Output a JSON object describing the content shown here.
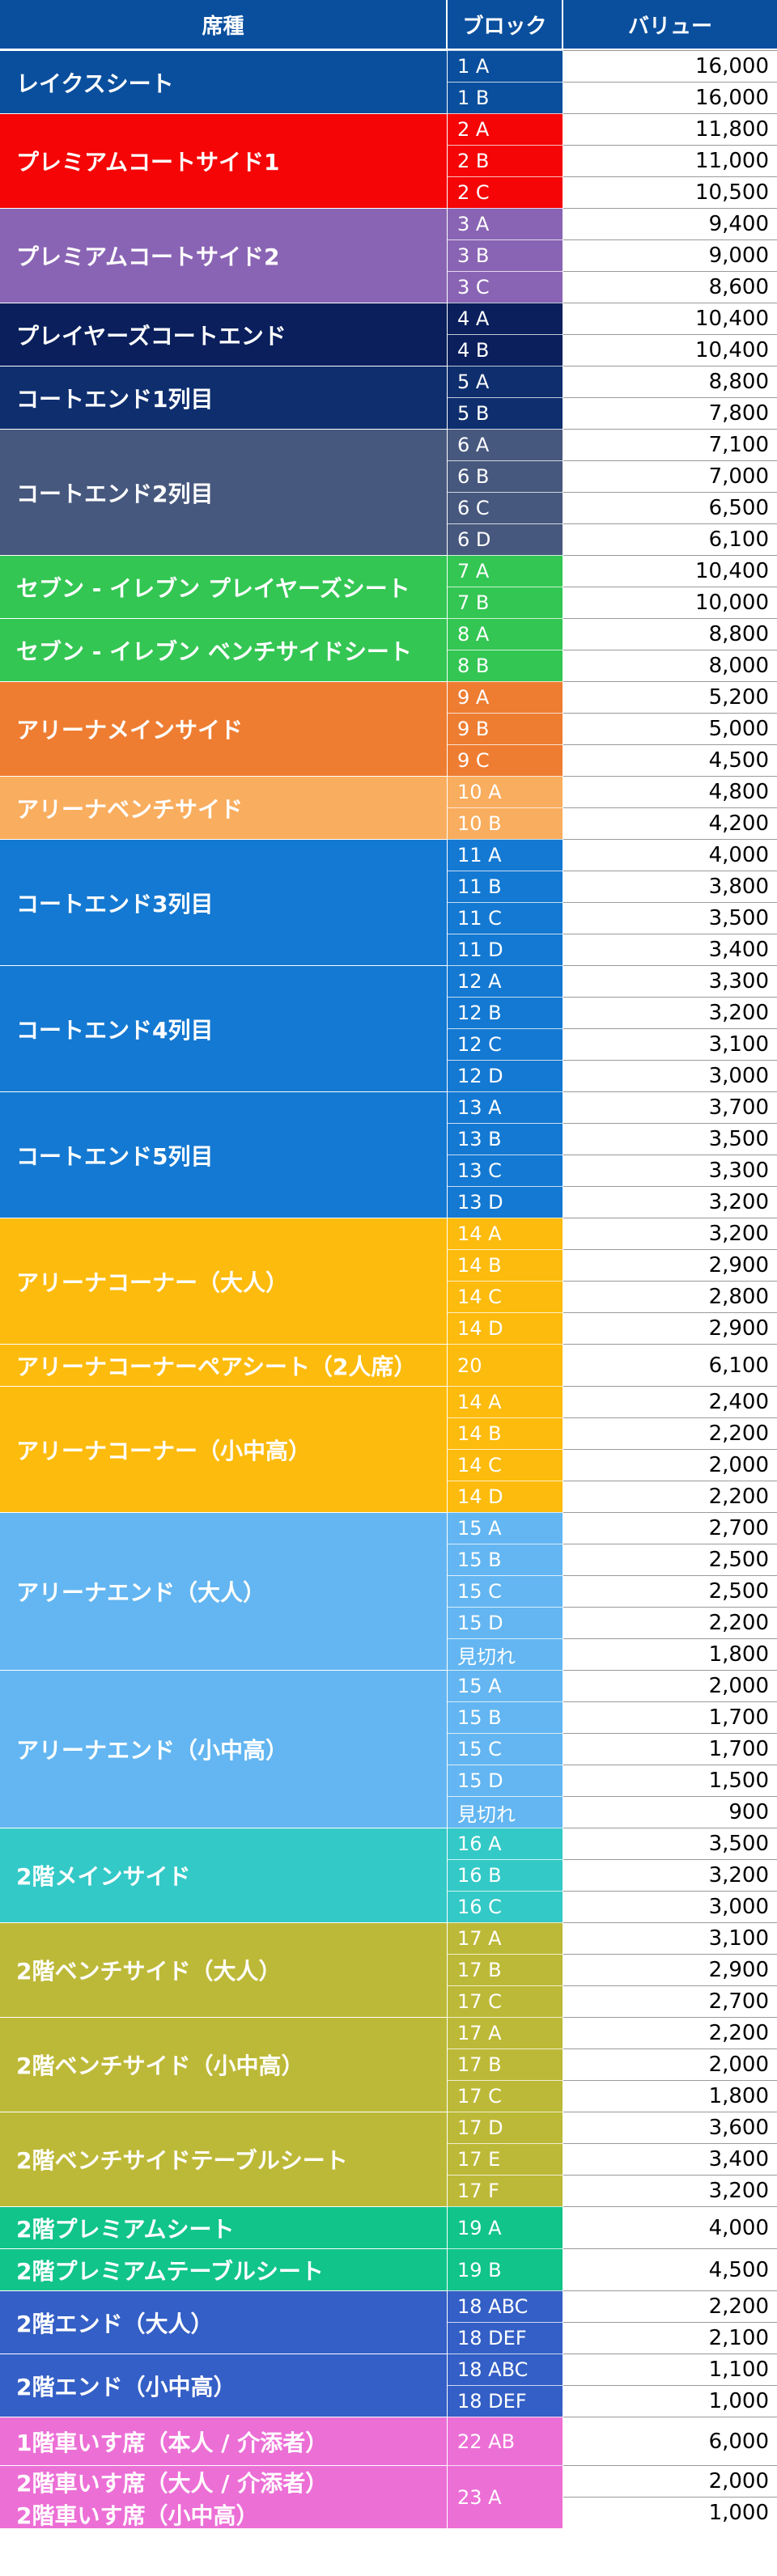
{
  "header": {
    "seat": "席種",
    "block": "ブロック",
    "value": "バリュー"
  },
  "groups": [
    {
      "name": "レイクスシート",
      "color": "#0a4f9e",
      "rows": [
        [
          "1 A",
          "16,000"
        ],
        [
          "1 B",
          "16,000"
        ]
      ]
    },
    {
      "name": "プレミアムコートサイド1",
      "color": "#f50505",
      "rows": [
        [
          "2 A",
          "11,800"
        ],
        [
          "2 B",
          "11,000"
        ],
        [
          "2 C",
          "10,500"
        ]
      ]
    },
    {
      "name": "プレミアムコートサイド2",
      "color": "#8a64b4",
      "rows": [
        [
          "3 A",
          "9,400"
        ],
        [
          "3 B",
          "9,000"
        ],
        [
          "3 C",
          "8,600"
        ]
      ]
    },
    {
      "name": "プレイヤーズコートエンド",
      "color": "#0a1f5c",
      "rows": [
        [
          "4 A",
          "10,400"
        ],
        [
          "4 B",
          "10,400"
        ]
      ]
    },
    {
      "name": "コートエンド1列目",
      "color": "#0e2e6e",
      "rows": [
        [
          "5 A",
          "8,800"
        ],
        [
          "5 B",
          "7,800"
        ]
      ]
    },
    {
      "name": "コートエンド2列目",
      "color": "#47587e",
      "rows": [
        [
          "6 A",
          "7,100"
        ],
        [
          "6 B",
          "7,000"
        ],
        [
          "6 C",
          "6,500"
        ],
        [
          "6 D",
          "6,100"
        ]
      ]
    },
    {
      "name": "セブン - イレブン プレイヤーズシート",
      "color": "#33c653",
      "rows": [
        [
          "7 A",
          "10,400"
        ],
        [
          "7 B",
          "10,000"
        ]
      ]
    },
    {
      "name": "セブン - イレブン ベンチサイドシート",
      "color": "#33c653",
      "rows": [
        [
          "8 A",
          "8,800"
        ],
        [
          "8 B",
          "8,000"
        ]
      ]
    },
    {
      "name": "アリーナメインサイド",
      "color": "#ee7d32",
      "rows": [
        [
          "9 A",
          "5,200"
        ],
        [
          "9 B",
          "5,000"
        ],
        [
          "9 C",
          "4,500"
        ]
      ]
    },
    {
      "name": "アリーナベンチサイド",
      "color": "#f9ad5e",
      "rows": [
        [
          "10 A",
          "4,800"
        ],
        [
          "10 B",
          "4,200"
        ]
      ]
    },
    {
      "name": "コートエンド3列目",
      "color": "#1479d2",
      "rows": [
        [
          "11 A",
          "4,000"
        ],
        [
          "11 B",
          "3,800"
        ],
        [
          "11 C",
          "3,500"
        ],
        [
          "11 D",
          "3,400"
        ]
      ]
    },
    {
      "name": "コートエンド4列目",
      "color": "#1479d2",
      "rows": [
        [
          "12 A",
          "3,300"
        ],
        [
          "12 B",
          "3,200"
        ],
        [
          "12 C",
          "3,100"
        ],
        [
          "12 D",
          "3,000"
        ]
      ]
    },
    {
      "name": "コートエンド5列目",
      "color": "#1479d2",
      "rows": [
        [
          "13 A",
          "3,700"
        ],
        [
          "13 B",
          "3,500"
        ],
        [
          "13 C",
          "3,300"
        ],
        [
          "13 D",
          "3,200"
        ]
      ]
    },
    {
      "name": "アリーナコーナー（大人）",
      "color": "#fdbb0d",
      "rows": [
        [
          "14 A",
          "3,200"
        ],
        [
          "14 B",
          "2,900"
        ],
        [
          "14 C",
          "2,800"
        ],
        [
          "14 D",
          "2,900"
        ]
      ]
    },
    {
      "name": "アリーナコーナーペアシート（2人席）",
      "color": "#fdbb0d",
      "rows": [
        [
          "20",
          "6,100"
        ]
      ]
    },
    {
      "name": "アリーナコーナー（小中高）",
      "color": "#fdbb0d",
      "rows": [
        [
          "14 A",
          "2,400"
        ],
        [
          "14 B",
          "2,200"
        ],
        [
          "14 C",
          "2,000"
        ],
        [
          "14 D",
          "2,200"
        ]
      ]
    },
    {
      "name": "アリーナエンド（大人）",
      "color": "#63b6f1",
      "rows": [
        [
          "15 A",
          "2,700"
        ],
        [
          "15 B",
          "2,500"
        ],
        [
          "15 C",
          "2,500"
        ],
        [
          "15 D",
          "2,200"
        ],
        [
          "見切れ",
          "1,800"
        ]
      ]
    },
    {
      "name": "アリーナエンド（小中高）",
      "color": "#63b6f1",
      "rows": [
        [
          "15 A",
          "2,000"
        ],
        [
          "15 B",
          "1,700"
        ],
        [
          "15 C",
          "1,700"
        ],
        [
          "15 D",
          "1,500"
        ],
        [
          "見切れ",
          "900"
        ]
      ]
    },
    {
      "name": "2階メインサイド",
      "color": "#33c9c7",
      "rows": [
        [
          "16 A",
          "3,500"
        ],
        [
          "16 B",
          "3,200"
        ],
        [
          "16 C",
          "3,000"
        ]
      ]
    },
    {
      "name": "2階ベンチサイド（大人）",
      "color": "#bdb938",
      "rows": [
        [
          "17 A",
          "3,100"
        ],
        [
          "17 B",
          "2,900"
        ],
        [
          "17 C",
          "2,700"
        ]
      ]
    },
    {
      "name": "2階ベンチサイド（小中高）",
      "color": "#bdb938",
      "rows": [
        [
          "17 A",
          "2,200"
        ],
        [
          "17 B",
          "2,000"
        ],
        [
          "17 C",
          "1,800"
        ]
      ]
    },
    {
      "name": "2階ベンチサイドテーブルシート",
      "color": "#bdb938",
      "rows": [
        [
          "17 D",
          "3,600"
        ],
        [
          "17 E",
          "3,400"
        ],
        [
          "17 F",
          "3,200"
        ]
      ]
    },
    {
      "name": "2階プレミアムシート",
      "color": "#11c48a",
      "rows": [
        [
          "19 A",
          "4,000"
        ]
      ]
    },
    {
      "name": "2階プレミアムテーブルシート",
      "color": "#11c48a",
      "rows": [
        [
          "19 B",
          "4,500"
        ]
      ]
    },
    {
      "name": "2階エンド（大人）",
      "color": "#345fc6",
      "rows": [
        [
          "18 ABC",
          "2,200"
        ],
        [
          "18 DEF",
          "2,100"
        ]
      ]
    },
    {
      "name": "2階エンド（小中高）",
      "color": "#345fc6",
      "rows": [
        [
          "18 ABC",
          "1,100"
        ],
        [
          "18 DEF",
          "1,000"
        ]
      ]
    },
    {
      "name": "1階車いす席（本人 / 介添者）",
      "color": "#ec6fd6",
      "rows": [
        [
          "22 AB",
          "6,000"
        ]
      ]
    },
    {
      "name": "2階車いす席（大人 / 介添者）",
      "name2": "2階車いす席（小中高）",
      "color": "#ec6fd6",
      "shared_block": "23 A",
      "rows": [
        [
          "23 A",
          "2,000"
        ],
        [
          "23 A",
          "1,000"
        ]
      ]
    }
  ]
}
